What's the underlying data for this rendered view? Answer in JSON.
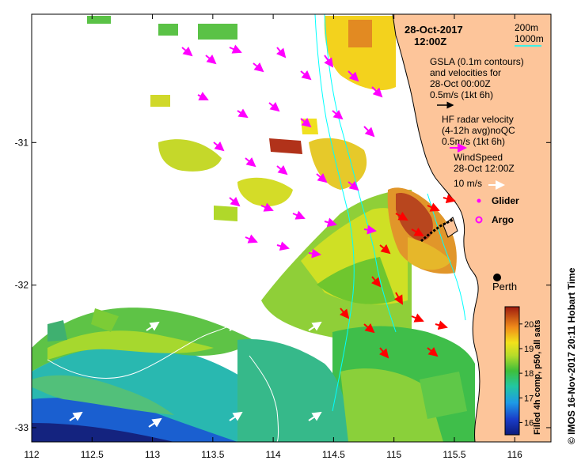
{
  "header": {
    "date": "28-Oct-2017",
    "time": "12:00Z"
  },
  "contours": {
    "label_200m": "200m",
    "label_1000m": "1000m"
  },
  "legend": {
    "gsla_line1": "GSLA (0.1m contours)",
    "gsla_line2": "and velocities for",
    "gsla_line3": "28-Oct 00:00Z",
    "gsla_scale": "0.5m/s (1kt 6h)",
    "hf_line1": "HF radar velocity",
    "hf_line2": "(4-12h avg)noQC",
    "hf_scale": "0.5m/s (1kt 6h)",
    "wind_line1": "WindSpeed",
    "wind_line2": "28-Oct 12:00Z",
    "wind_scale": "10 m/s",
    "glider_label": "Glider",
    "argo_label": "Argo"
  },
  "city": {
    "name": "Perth"
  },
  "axes": {
    "x_ticks": [
      "112",
      "112.5",
      "113",
      "113.5",
      "114",
      "114.5",
      "115",
      "115.5",
      "116"
    ],
    "x_values": [
      112,
      112.5,
      113,
      113.5,
      114,
      114.5,
      115,
      115.5,
      116
    ],
    "y_ticks": [
      "-31",
      "-32",
      "-33"
    ],
    "y_values": [
      -31,
      -32,
      -33
    ],
    "xlim": [
      112,
      116.3
    ],
    "ylim": [
      -33.1,
      -30.1
    ]
  },
  "colorbar": {
    "title": "Filled 4h comp, p50, all sats",
    "ticks": [
      "16",
      "17",
      "18",
      "19",
      "20"
    ],
    "values": [
      16,
      17,
      18,
      19,
      20
    ],
    "range": [
      15.5,
      20.7
    ]
  },
  "credit": "© IMOS 16-Nov-2017 20:11 Hobart Time",
  "colors": {
    "land": "#fdc59a",
    "hf_arrow": "#ff00ff",
    "gsla_arrow": "#ff0000",
    "wind_arrow": "#ffffff",
    "contour_200m": "#ffffff",
    "contour_1000m": "#00ffff"
  }
}
